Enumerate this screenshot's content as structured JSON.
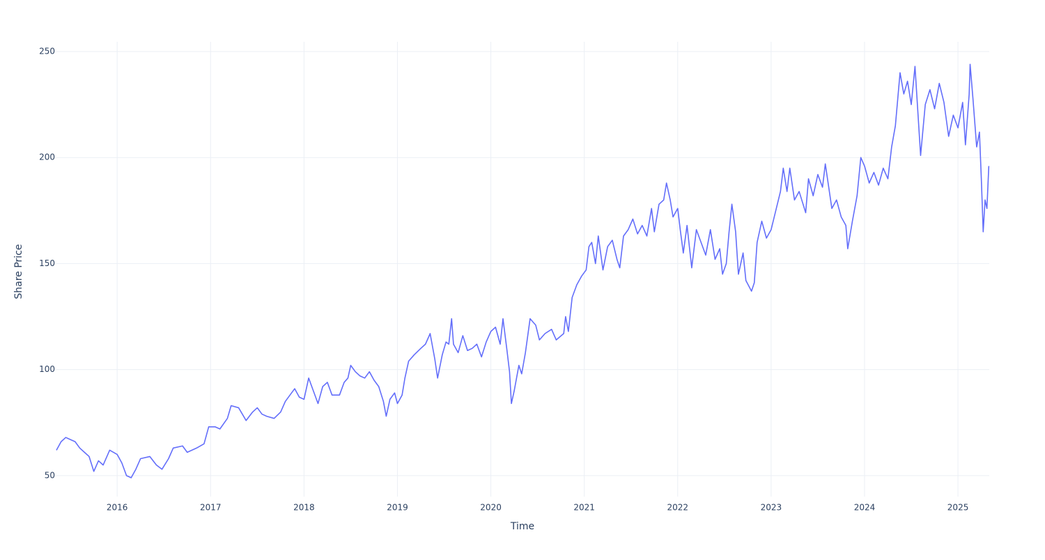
{
  "chart_data": {
    "type": "line",
    "x_label": "Time",
    "y_label": "Share Price",
    "xlim": [
      2015.35,
      2025.335
    ],
    "ylim": [
      40.1,
      254.6
    ],
    "xticks": [
      2016,
      2017,
      2018,
      2019,
      2020,
      2021,
      2022,
      2023,
      2024,
      2025
    ],
    "yticks": [
      50,
      100,
      150,
      200,
      250
    ],
    "grid": true,
    "x": [
      2015.35,
      2015.4,
      2015.45,
      2015.5,
      2015.55,
      2015.6,
      2015.65,
      2015.7,
      2015.75,
      2015.8,
      2015.85,
      2015.92,
      2016.0,
      2016.05,
      2016.1,
      2016.15,
      2016.2,
      2016.25,
      2016.35,
      2016.42,
      2016.48,
      2016.55,
      2016.6,
      2016.7,
      2016.75,
      2016.85,
      2016.93,
      2016.98,
      2017.05,
      2017.1,
      2017.18,
      2017.22,
      2017.3,
      2017.38,
      2017.45,
      2017.5,
      2017.55,
      2017.6,
      2017.68,
      2017.75,
      2017.8,
      2017.85,
      2017.9,
      2017.95,
      2018.0,
      2018.05,
      2018.1,
      2018.15,
      2018.2,
      2018.25,
      2018.3,
      2018.38,
      2018.43,
      2018.47,
      2018.5,
      2018.55,
      2018.6,
      2018.65,
      2018.7,
      2018.75,
      2018.8,
      2018.85,
      2018.88,
      2018.92,
      2018.97,
      2019.0,
      2019.05,
      2019.08,
      2019.12,
      2019.18,
      2019.25,
      2019.3,
      2019.35,
      2019.4,
      2019.43,
      2019.48,
      2019.52,
      2019.55,
      2019.58,
      2019.6,
      2019.65,
      2019.7,
      2019.75,
      2019.8,
      2019.85,
      2019.9,
      2019.95,
      2020.0,
      2020.05,
      2020.1,
      2020.13,
      2020.17,
      2020.2,
      2020.22,
      2020.25,
      2020.3,
      2020.33,
      2020.37,
      2020.42,
      2020.48,
      2020.52,
      2020.58,
      2020.65,
      2020.7,
      2020.78,
      2020.8,
      2020.83,
      2020.87,
      2020.92,
      2020.97,
      2021.02,
      2021.05,
      2021.08,
      2021.12,
      2021.15,
      2021.2,
      2021.25,
      2021.3,
      2021.35,
      2021.38,
      2021.42,
      2021.47,
      2021.52,
      2021.57,
      2021.62,
      2021.67,
      2021.72,
      2021.75,
      2021.8,
      2021.85,
      2021.88,
      2021.92,
      2021.95,
      2022.0,
      2022.03,
      2022.06,
      2022.1,
      2022.15,
      2022.2,
      2022.25,
      2022.3,
      2022.35,
      2022.4,
      2022.45,
      2022.48,
      2022.52,
      2022.55,
      2022.58,
      2022.62,
      2022.65,
      2022.7,
      2022.73,
      2022.79,
      2022.82,
      2022.85,
      2022.9,
      2022.95,
      2023.0,
      2023.05,
      2023.1,
      2023.13,
      2023.17,
      2023.2,
      2023.25,
      2023.3,
      2023.37,
      2023.4,
      2023.45,
      2023.5,
      2023.55,
      2023.58,
      2023.62,
      2023.65,
      2023.7,
      2023.75,
      2023.8,
      2023.82,
      2023.87,
      2023.92,
      2023.96,
      2024.0,
      2024.05,
      2024.1,
      2024.15,
      2024.2,
      2024.25,
      2024.29,
      2024.33,
      2024.36,
      2024.38,
      2024.42,
      2024.46,
      2024.5,
      2024.54,
      2024.6,
      2024.65,
      2024.7,
      2024.75,
      2024.8,
      2024.85,
      2024.9,
      2024.95,
      2025.0,
      2025.05,
      2025.08,
      2025.12,
      2025.13,
      2025.16,
      2025.2,
      2025.23,
      2025.25,
      2025.27,
      2025.29,
      2025.31,
      2025.33
    ],
    "series": [
      {
        "name": "Share Price",
        "color": "#636efa",
        "values": [
          62,
          66,
          68,
          67,
          66,
          63,
          61,
          59,
          52,
          57,
          55,
          62,
          60,
          56,
          50,
          49,
          53,
          58,
          59,
          55,
          53,
          58,
          63,
          64,
          61,
          63,
          65,
          73,
          73,
          72,
          77,
          83,
          82,
          76,
          80,
          82,
          79,
          78,
          77,
          80,
          85,
          88,
          91,
          87,
          86,
          96,
          90,
          84,
          92,
          94,
          88,
          88,
          94,
          96,
          102,
          99,
          97,
          96,
          99,
          95,
          92,
          85,
          78,
          86,
          89,
          84,
          88,
          96,
          104,
          107,
          110,
          112,
          117,
          105,
          96,
          107,
          113,
          112,
          124,
          112,
          108,
          116,
          109,
          110,
          112,
          106,
          113,
          118,
          120,
          112,
          124,
          110,
          99,
          84,
          90,
          102,
          98,
          108,
          124,
          121,
          114,
          117,
          119,
          114,
          117,
          125,
          118,
          134,
          140,
          144,
          147,
          158,
          160,
          150,
          163,
          147,
          158,
          161,
          152,
          148,
          163,
          166,
          171,
          164,
          168,
          163,
          176,
          165,
          178,
          180,
          188,
          180,
          172,
          176,
          165,
          155,
          168,
          148,
          166,
          160,
          154,
          166,
          152,
          157,
          145,
          150,
          165,
          178,
          165,
          145,
          155,
          142,
          137,
          141,
          160,
          170,
          162,
          166,
          175,
          184,
          195,
          184,
          195,
          180,
          184,
          174,
          190,
          182,
          192,
          186,
          197,
          185,
          176,
          180,
          172,
          168,
          157,
          170,
          182,
          200,
          196,
          188,
          193,
          187,
          195,
          190,
          205,
          215,
          230,
          240,
          230,
          236,
          225,
          243,
          201,
          225,
          232,
          223,
          235,
          226,
          210,
          220,
          214,
          226,
          206,
          230,
          244,
          228,
          205,
          212,
          190,
          165,
          180,
          176,
          196
        ]
      }
    ]
  }
}
